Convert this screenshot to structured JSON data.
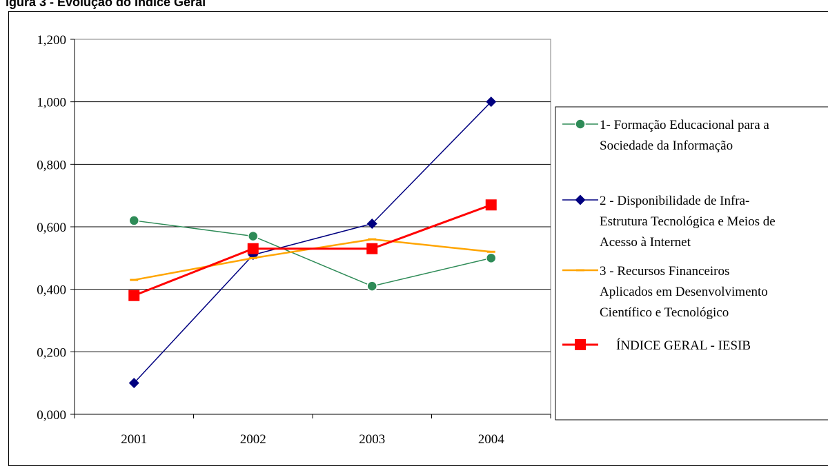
{
  "page": {
    "title": "igura 3 - Evolução do Índice Geral"
  },
  "chart_data": {
    "type": "line",
    "title": "",
    "xlabel": "",
    "ylabel": "",
    "categories": [
      "2001",
      "2002",
      "2003",
      "2004"
    ],
    "ylim": [
      0,
      1.2
    ],
    "yticks": [
      "0,000",
      "0,200",
      "0,400",
      "0,600",
      "0,800",
      "1,000",
      "1,200"
    ],
    "grid": true,
    "legend_position": "right",
    "series": [
      {
        "name_lines": [
          "1- Formação Educacional para a",
          "Sociedade da Informação"
        ],
        "values": [
          0.62,
          0.57,
          0.41,
          0.5
        ],
        "color": "#2e8b57",
        "marker": "circle"
      },
      {
        "name_lines": [
          "2 - Disponibilidade de Infra-",
          "Estrutura Tecnológica e Meios de",
          "Acesso à Internet"
        ],
        "values": [
          0.1,
          0.51,
          0.61,
          1.0
        ],
        "color": "#000080",
        "marker": "diamond"
      },
      {
        "name_lines": [
          "3 - Recursos Financeiros",
          "Aplicados em Desenvolvimento",
          "Científico e Tecnológico"
        ],
        "values": [
          0.43,
          0.5,
          0.56,
          0.52
        ],
        "color": "#ffa500",
        "marker": "dash"
      },
      {
        "name_lines": [
          "ÍNDICE GERAL - IESIB"
        ],
        "values": [
          0.38,
          0.53,
          0.53,
          0.67
        ],
        "color": "#ff0000",
        "marker": "square"
      }
    ]
  }
}
